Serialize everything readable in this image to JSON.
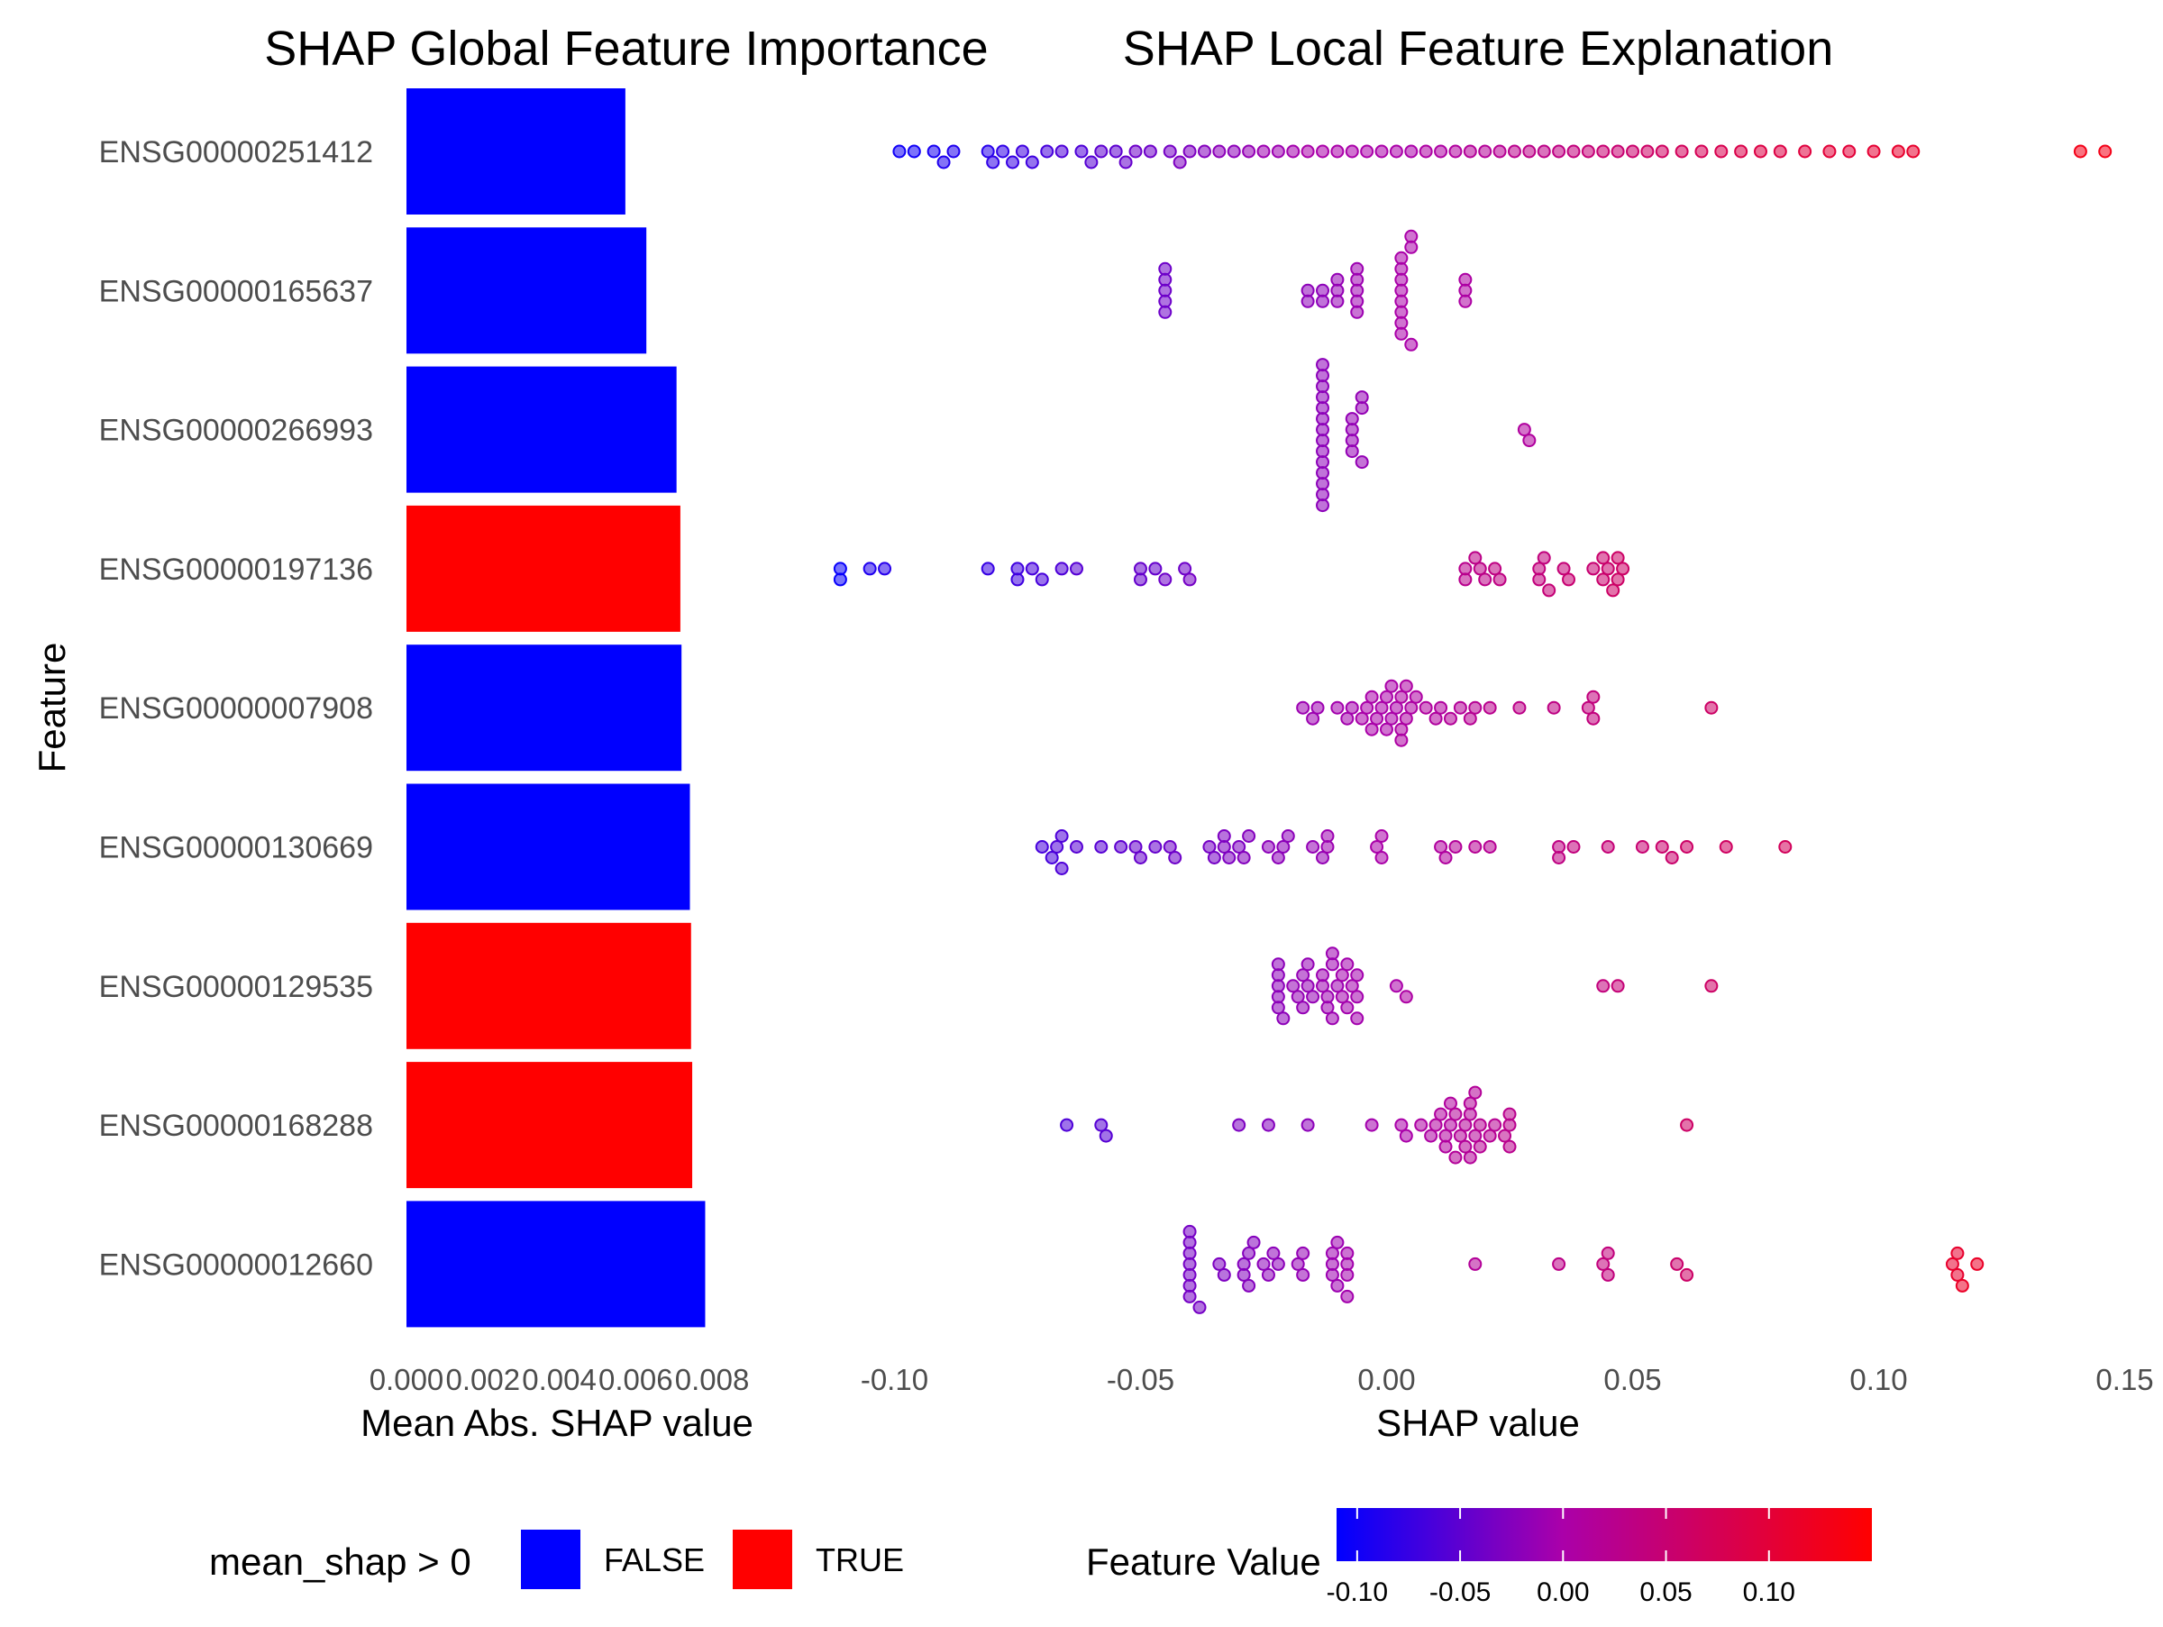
{
  "chart_data": [
    {
      "type": "bar",
      "orientation": "horizontal",
      "title": "SHAP Global Feature Importance",
      "xlabel": "Mean Abs. SHAP value",
      "ylabel": "Feature",
      "xlim": [
        0,
        0.0088
      ],
      "xticks": [
        "0.000",
        "0.002",
        "0.004",
        "0.006",
        "0.008"
      ],
      "grid": false,
      "categories": [
        "ENSG00000251412",
        "ENSG00000165637",
        "ENSG00000266993",
        "ENSG00000197136",
        "ENSG00000007908",
        "ENSG00000130669",
        "ENSG00000129535",
        "ENSG00000168288",
        "ENSG00000012660"
      ],
      "values": [
        0.00573,
        0.00628,
        0.00707,
        0.00717,
        0.0072,
        0.00742,
        0.00745,
        0.00748,
        0.00782
      ],
      "positive": [
        false,
        false,
        false,
        true,
        false,
        false,
        true,
        true,
        false
      ],
      "legend": {
        "title": "mean_shap > 0",
        "placement": "bottom",
        "entries": [
          {
            "label": "FALSE",
            "color": "#0000ff"
          },
          {
            "label": "TRUE",
            "color": "#ff0000"
          }
        ]
      }
    },
    {
      "type": "scatter",
      "title": "SHAP Local Feature Explanation",
      "xlabel": "SHAP value",
      "xlim": [
        -0.101,
        0.151
      ],
      "xticks": [
        "-0.10",
        "-0.05",
        "0.00",
        "0.05",
        "0.10",
        "0.15"
      ],
      "grid": false,
      "categories": [
        "ENSG00000251412",
        "ENSG00000165637",
        "ENSG00000266993",
        "ENSG00000197136",
        "ENSG00000007908",
        "ENSG00000130669",
        "ENSG00000129535",
        "ENSG00000168288",
        "ENSG00000012660"
      ],
      "series": [
        {
          "feature": "ENSG00000251412",
          "x": [
            -0.099,
            -0.096,
            -0.092,
            -0.09,
            -0.088,
            -0.081,
            -0.08,
            -0.078,
            -0.076,
            -0.074,
            -0.072,
            -0.069,
            -0.066,
            -0.062,
            -0.06,
            -0.058,
            -0.055,
            -0.053,
            -0.051,
            -0.048,
            -0.044,
            -0.042,
            -0.04,
            -0.037,
            -0.034,
            -0.031,
            -0.028,
            -0.025,
            -0.022,
            -0.019,
            -0.016,
            -0.013,
            -0.01,
            -0.007,
            -0.004,
            -0.001,
            0.002,
            0.005,
            0.008,
            0.011,
            0.014,
            0.017,
            0.02,
            0.023,
            0.026,
            0.029,
            0.032,
            0.035,
            0.038,
            0.041,
            0.044,
            0.047,
            0.05,
            0.053,
            0.056,
            0.06,
            0.064,
            0.068,
            0.072,
            0.076,
            0.08,
            0.085,
            0.09,
            0.094,
            0.099,
            0.104,
            0.107,
            0.141,
            0.146
          ],
          "color_value": [
            -0.1,
            -0.1,
            -0.095,
            -0.09,
            -0.09,
            -0.085,
            -0.08,
            -0.08,
            -0.075,
            -0.07,
            -0.07,
            -0.065,
            -0.06,
            -0.06,
            -0.055,
            -0.05,
            -0.05,
            -0.045,
            -0.04,
            -0.04,
            -0.035,
            -0.03,
            -0.03,
            -0.025,
            -0.02,
            -0.02,
            -0.015,
            -0.01,
            -0.01,
            -0.005,
            0,
            0,
            0,
            0,
            0,
            0,
            0,
            0,
            0.005,
            0.005,
            0.01,
            0.015,
            0.015,
            0.02,
            0.025,
            0.03,
            0.03,
            0.035,
            0.04,
            0.045,
            0.05,
            0.05,
            0.055,
            0.06,
            0.065,
            0.07,
            0.075,
            0.08,
            0.085,
            0.09,
            0.09,
            0.095,
            0.1,
            0.1,
            0.105,
            0.11,
            0.11,
            0.13,
            0.13
          ]
        },
        {
          "feature": "ENSG00000165637",
          "x": [
            -0.045,
            -0.045,
            -0.045,
            -0.045,
            -0.045,
            -0.016,
            -0.016,
            -0.013,
            -0.013,
            -0.01,
            -0.01,
            -0.01,
            -0.006,
            -0.006,
            -0.006,
            -0.006,
            -0.006,
            0.003,
            0.003,
            0.003,
            0.003,
            0.003,
            0.003,
            0.003,
            0.003,
            0.005,
            0.005,
            0.005,
            0.016,
            0.016,
            0.016
          ],
          "color_value": [
            -0.04,
            -0.04,
            -0.04,
            -0.04,
            -0.04,
            -0.02,
            -0.02,
            -0.02,
            -0.02,
            -0.015,
            -0.015,
            -0.015,
            -0.01,
            -0.01,
            -0.01,
            -0.01,
            -0.01,
            0,
            0,
            0,
            0,
            0,
            0,
            0,
            0,
            0,
            0,
            0,
            0.005,
            0.005,
            0.005
          ]
        },
        {
          "feature": "ENSG00000266993",
          "x": [
            -0.013,
            -0.013,
            -0.013,
            -0.013,
            -0.013,
            -0.013,
            -0.013,
            -0.013,
            -0.013,
            -0.013,
            -0.013,
            -0.013,
            -0.013,
            -0.013,
            -0.007,
            -0.007,
            -0.007,
            -0.007,
            -0.005,
            -0.005,
            -0.005,
            0.028,
            0.029
          ],
          "color_value": [
            -0.02,
            -0.02,
            -0.02,
            -0.02,
            -0.02,
            -0.02,
            -0.02,
            -0.02,
            -0.02,
            -0.02,
            -0.02,
            -0.02,
            -0.02,
            -0.02,
            -0.015,
            -0.015,
            -0.015,
            -0.015,
            -0.015,
            -0.015,
            -0.015,
            0.01,
            0.01
          ]
        },
        {
          "feature": "ENSG00000197136",
          "x": [
            -0.111,
            -0.111,
            -0.105,
            -0.102,
            -0.081,
            -0.075,
            -0.075,
            -0.072,
            -0.07,
            -0.066,
            -0.063,
            -0.05,
            -0.05,
            -0.047,
            -0.045,
            -0.041,
            -0.04,
            0.016,
            0.016,
            0.018,
            0.019,
            0.02,
            0.022,
            0.023,
            0.031,
            0.031,
            0.032,
            0.033,
            0.036,
            0.037,
            0.042,
            0.044,
            0.044,
            0.045,
            0.046,
            0.047,
            0.047,
            0.048
          ],
          "color_value": [
            -0.105,
            -0.105,
            -0.09,
            -0.085,
            -0.075,
            -0.07,
            -0.07,
            -0.065,
            -0.065,
            -0.06,
            -0.055,
            -0.045,
            -0.045,
            -0.045,
            -0.04,
            -0.04,
            -0.035,
            0.025,
            0.025,
            0.03,
            0.03,
            0.03,
            0.035,
            0.035,
            0.04,
            0.04,
            0.04,
            0.045,
            0.045,
            0.05,
            0.05,
            0.055,
            0.055,
            0.055,
            0.06,
            0.06,
            0.06,
            0.06
          ]
        },
        {
          "feature": "ENSG00000007908",
          "x": [
            -0.017,
            -0.015,
            -0.014,
            -0.01,
            -0.008,
            -0.007,
            -0.005,
            -0.004,
            -0.003,
            -0.003,
            -0.002,
            -0.001,
            0,
            0,
            0.001,
            0.001,
            0.002,
            0.003,
            0.003,
            0.003,
            0.004,
            0.004,
            0.005,
            0.006,
            0.008,
            0.01,
            0.011,
            0.013,
            0.015,
            0.017,
            0.018,
            0.021,
            0.027,
            0.034,
            0.041,
            0.042,
            0.042,
            0.066
          ],
          "color_value": [
            -0.01,
            -0.01,
            -0.01,
            -0.005,
            -0.005,
            -0.005,
            0,
            0,
            0,
            0,
            0,
            0,
            0,
            0,
            0,
            0,
            0,
            0.005,
            0.005,
            0.005,
            0.005,
            0.005,
            0.005,
            0.005,
            0.01,
            0.01,
            0.01,
            0.015,
            0.015,
            0.02,
            0.02,
            0.025,
            0.03,
            0.035,
            0.04,
            0.04,
            0.04,
            0.06
          ]
        },
        {
          "feature": "ENSG00000130669",
          "x": [
            -0.07,
            -0.068,
            -0.067,
            -0.066,
            -0.066,
            -0.063,
            -0.058,
            -0.054,
            -0.051,
            -0.05,
            -0.047,
            -0.044,
            -0.043,
            -0.036,
            -0.035,
            -0.033,
            -0.033,
            -0.032,
            -0.03,
            -0.029,
            -0.028,
            -0.024,
            -0.022,
            -0.021,
            -0.02,
            -0.015,
            -0.013,
            -0.012,
            -0.012,
            -0.002,
            -0.001,
            -0.001,
            0.011,
            0.012,
            0.014,
            0.018,
            0.021,
            0.035,
            0.035,
            0.038,
            0.045,
            0.052,
            0.056,
            0.058,
            0.061,
            0.069,
            0.081
          ],
          "color_value": [
            -0.065,
            -0.065,
            -0.06,
            -0.06,
            -0.06,
            -0.055,
            -0.055,
            -0.05,
            -0.045,
            -0.045,
            -0.045,
            -0.04,
            -0.04,
            -0.035,
            -0.035,
            -0.03,
            -0.03,
            -0.03,
            -0.03,
            -0.025,
            -0.025,
            -0.02,
            -0.02,
            -0.02,
            -0.02,
            -0.015,
            -0.015,
            -0.01,
            -0.01,
            0,
            0,
            0,
            0.01,
            0.01,
            0.015,
            0.02,
            0.02,
            0.035,
            0.035,
            0.04,
            0.045,
            0.05,
            0.055,
            0.055,
            0.06,
            0.065,
            0.07
          ]
        },
        {
          "feature": "ENSG00000129535",
          "x": [
            -0.022,
            -0.022,
            -0.022,
            -0.022,
            -0.022,
            -0.021,
            -0.019,
            -0.018,
            -0.017,
            -0.017,
            -0.016,
            -0.016,
            -0.015,
            -0.013,
            -0.013,
            -0.012,
            -0.012,
            -0.011,
            -0.011,
            -0.011,
            -0.01,
            -0.009,
            -0.009,
            -0.008,
            -0.008,
            -0.007,
            -0.006,
            -0.006,
            -0.006,
            0.002,
            0.004,
            0.044,
            0.047,
            0.066
          ],
          "color_value": [
            -0.02,
            -0.02,
            -0.02,
            -0.02,
            -0.02,
            -0.02,
            -0.015,
            -0.015,
            -0.015,
            -0.015,
            -0.015,
            -0.015,
            -0.015,
            -0.01,
            -0.01,
            -0.01,
            -0.01,
            -0.01,
            -0.01,
            -0.01,
            -0.01,
            -0.005,
            -0.005,
            -0.005,
            -0.005,
            -0.005,
            -0.005,
            -0.005,
            -0.005,
            0,
            0.005,
            0.04,
            0.045,
            0.06
          ]
        },
        {
          "feature": "ENSG00000168288",
          "x": [
            -0.065,
            -0.058,
            -0.057,
            -0.03,
            -0.024,
            -0.016,
            -0.003,
            0.003,
            0.004,
            0.007,
            0.009,
            0.01,
            0.011,
            0.012,
            0.012,
            0.013,
            0.013,
            0.014,
            0.014,
            0.015,
            0.016,
            0.016,
            0.017,
            0.017,
            0.017,
            0.018,
            0.018,
            0.019,
            0.019,
            0.021,
            0.022,
            0.024,
            0.025,
            0.025,
            0.025,
            0.061
          ],
          "color_value": [
            -0.06,
            -0.055,
            -0.055,
            -0.03,
            -0.025,
            -0.02,
            -0.005,
            0,
            0,
            0.005,
            0.005,
            0.01,
            0.01,
            0.01,
            0.01,
            0.01,
            0.01,
            0.015,
            0.015,
            0.015,
            0.015,
            0.015,
            0.015,
            0.015,
            0.015,
            0.015,
            0.015,
            0.02,
            0.02,
            0.02,
            0.02,
            0.025,
            0.025,
            0.025,
            0.025,
            0.06
          ]
        },
        {
          "feature": "ENSG00000012660",
          "x": [
            -0.04,
            -0.04,
            -0.04,
            -0.04,
            -0.04,
            -0.04,
            -0.04,
            -0.038,
            -0.034,
            -0.033,
            -0.029,
            -0.029,
            -0.028,
            -0.028,
            -0.027,
            -0.025,
            -0.024,
            -0.023,
            -0.022,
            -0.018,
            -0.017,
            -0.017,
            -0.011,
            -0.011,
            -0.011,
            -0.01,
            -0.01,
            -0.008,
            -0.008,
            -0.008,
            -0.008,
            0.018,
            0.035,
            0.044,
            0.045,
            0.045,
            0.059,
            0.061,
            0.115,
            0.116,
            0.116,
            0.117,
            0.12
          ],
          "color_value": [
            -0.035,
            -0.035,
            -0.035,
            -0.035,
            -0.035,
            -0.035,
            -0.035,
            -0.035,
            -0.03,
            -0.03,
            -0.025,
            -0.025,
            -0.025,
            -0.025,
            -0.025,
            -0.02,
            -0.02,
            -0.02,
            -0.02,
            -0.015,
            -0.015,
            -0.015,
            -0.01,
            -0.01,
            -0.01,
            -0.01,
            -0.01,
            -0.005,
            -0.005,
            -0.005,
            -0.005,
            0.015,
            0.03,
            0.04,
            0.04,
            0.04,
            0.055,
            0.06,
            0.11,
            0.11,
            0.11,
            0.115,
            0.115
          ]
        }
      ],
      "colorbar": {
        "title": "Feature Value",
        "placement": "bottom",
        "range": [
          -0.11,
          0.15
        ],
        "low_color": "#0000ff",
        "mid_color": "#aa00aa",
        "high_color": "#ff0000",
        "ticks": [
          "-0.10",
          "-0.05",
          "0.00",
          "0.05",
          "0.10"
        ]
      }
    }
  ]
}
